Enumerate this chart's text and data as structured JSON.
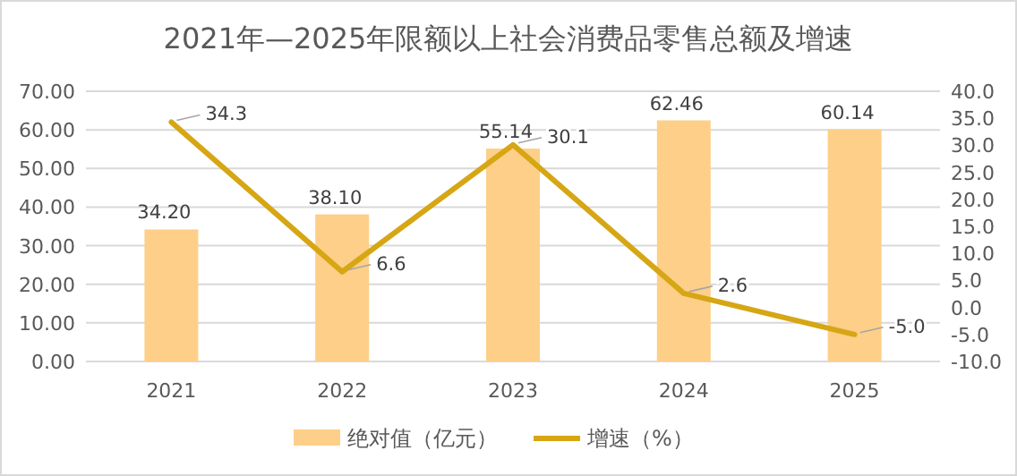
{
  "chart_data": {
    "type": "bar",
    "title": "2021年—2025年限额以上社会消费品零售总额及增速",
    "categories": [
      "2021",
      "2022",
      "2023",
      "2024",
      "2025"
    ],
    "series": [
      {
        "name": "绝对值（亿元）",
        "color": "#fdcf88",
        "values": [
          34.2,
          38.1,
          55.14,
          62.46,
          60.14
        ],
        "value_labels": [
          "34.20",
          "38.10",
          "55.14",
          "62.46",
          "60.14"
        ]
      },
      {
        "name": "增速（%）",
        "type": "line",
        "axis": "y2",
        "color": "#d6a614",
        "values": [
          34.3,
          6.6,
          30.1,
          2.6,
          -5.0
        ],
        "value_labels": [
          "34.3",
          "6.6",
          "30.1",
          "2.6",
          "-5.0"
        ]
      }
    ],
    "ylim": [
      0,
      70
    ],
    "yticks": [
      {
        "value": 0,
        "label": "0.00"
      },
      {
        "value": 10,
        "label": "10.00"
      },
      {
        "value": 20,
        "label": "20.00"
      },
      {
        "value": 30,
        "label": "30.00"
      },
      {
        "value": 40,
        "label": "40.00"
      },
      {
        "value": 50,
        "label": "50.00"
      },
      {
        "value": 60,
        "label": "60.00"
      },
      {
        "value": 70,
        "label": "70.00"
      }
    ],
    "y2lim": [
      -10,
      40
    ],
    "y2ticks": [
      {
        "value": -10,
        "label": "-10.0"
      },
      {
        "value": -5,
        "label": "-5.0"
      },
      {
        "value": 0,
        "label": "0.0"
      },
      {
        "value": 5,
        "label": "5.0"
      },
      {
        "value": 10,
        "label": "10.0"
      },
      {
        "value": 15,
        "label": "15.0"
      },
      {
        "value": 20,
        "label": "20.0"
      },
      {
        "value": 25,
        "label": "25.0"
      },
      {
        "value": 30,
        "label": "30.0"
      },
      {
        "value": 35,
        "label": "35.0"
      },
      {
        "value": 40,
        "label": "40.0"
      }
    ],
    "grid": "y",
    "legend": "bottom"
  }
}
